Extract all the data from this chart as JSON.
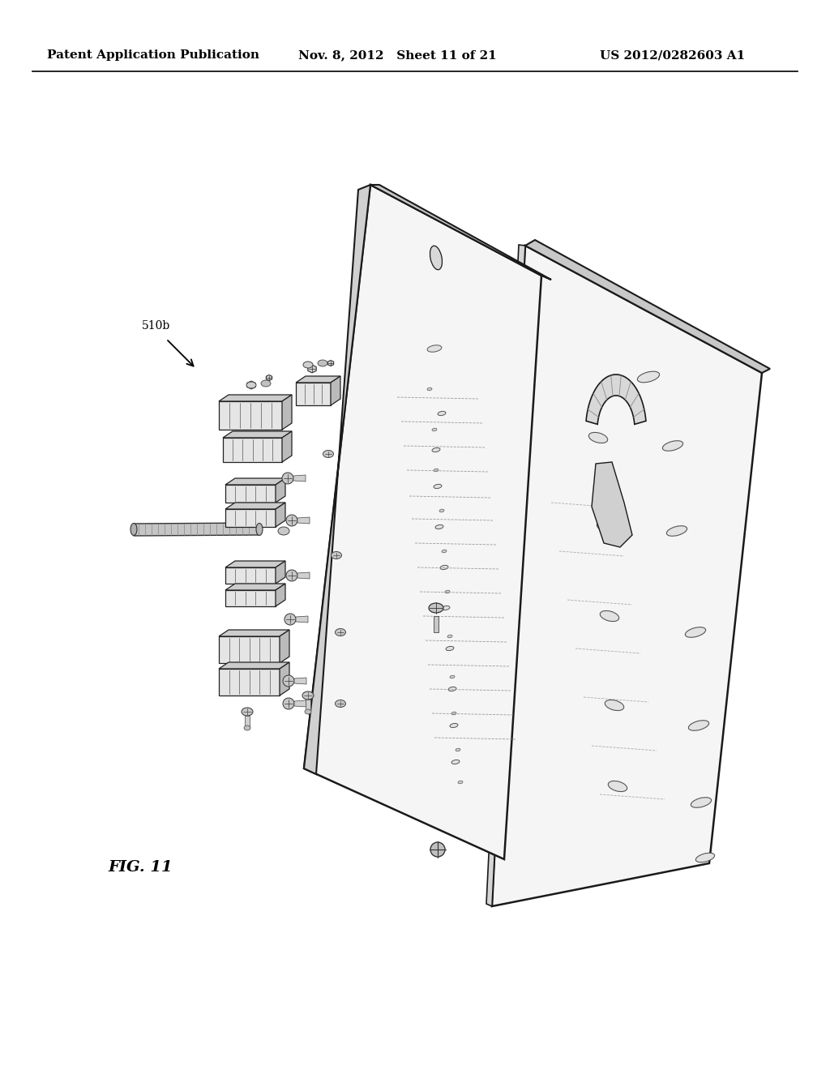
{
  "background_color": "#ffffff",
  "header_left": "Patent Application Publication",
  "header_mid": "Nov. 8, 2012   Sheet 11 of 21",
  "header_right": "US 2012/0282603 A1",
  "header_fontsize": 11,
  "fig_label": "FIG. 11",
  "ref_label": "510b",
  "line_color": "#2a2a2a",
  "panel_face": "#f8f8f8",
  "panel_edge": "#1a1a1a",
  "panel_side": "#dddddd",
  "panel_top": "#c8c8c8"
}
